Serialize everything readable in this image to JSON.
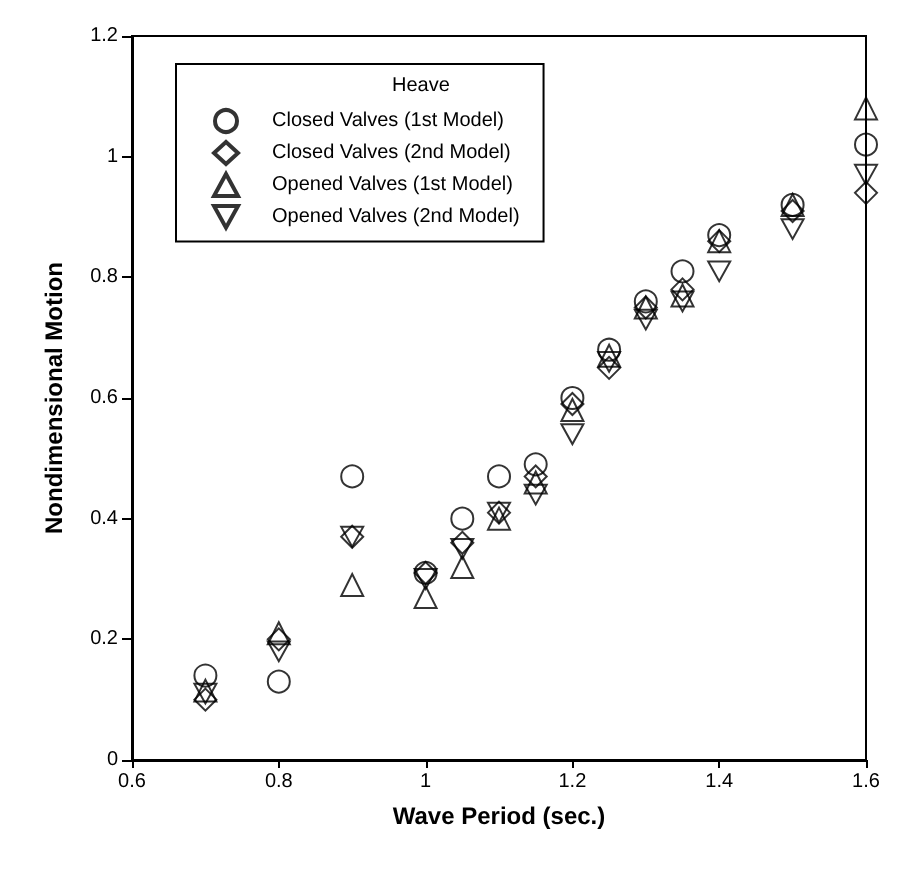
{
  "chart_data": {
    "type": "scatter",
    "xlabel": "Wave Period (sec.)",
    "ylabel": "Nondimensional Motion",
    "legend_title": "Heave",
    "x": [
      0.7,
      0.8,
      0.9,
      1.0,
      1.05,
      1.1,
      1.15,
      1.2,
      1.25,
      1.3,
      1.35,
      1.4,
      1.5,
      1.6
    ],
    "series": [
      {
        "name": "Closed Valves (1st Model)",
        "color": "#000000",
        "marker": "circle",
        "values": [
          0.14,
          0.13,
          0.47,
          0.31,
          0.4,
          0.47,
          0.49,
          0.6,
          0.68,
          0.76,
          0.81,
          0.87,
          0.92,
          1.02
        ]
      },
      {
        "name": "Closed Valves (2nd Model)",
        "color": "#000000",
        "marker": "diamond",
        "values": [
          0.1,
          0.2,
          0.37,
          0.31,
          0.36,
          0.41,
          0.47,
          0.59,
          0.65,
          0.75,
          0.78,
          0.86,
          0.91,
          0.94
        ]
      },
      {
        "name": "Opened Valves (1st Model)",
        "color": "#000000",
        "marker": "triangle",
        "values": [
          0.115,
          0.21,
          0.29,
          0.27,
          0.32,
          0.4,
          0.46,
          0.58,
          0.67,
          0.75,
          0.77,
          0.86,
          0.92,
          1.08
        ]
      },
      {
        "name": "Opened Valves (2nd Model)",
        "color": "#000000",
        "marker": "triangle-down",
        "values": [
          0.11,
          0.18,
          0.37,
          0.3,
          0.35,
          0.41,
          0.44,
          0.54,
          0.66,
          0.73,
          0.76,
          0.81,
          0.88,
          0.97
        ]
      }
    ],
    "xlim": [
      0.6,
      1.6
    ],
    "xticks": [
      0.6,
      0.8,
      1,
      1.2,
      1.4,
      1.6
    ],
    "ylim": [
      0,
      1.2
    ],
    "yticks": [
      0,
      0.2,
      0.4,
      0.6,
      0.8,
      1,
      1.2
    ],
    "grid": false,
    "legend": "top left"
  }
}
